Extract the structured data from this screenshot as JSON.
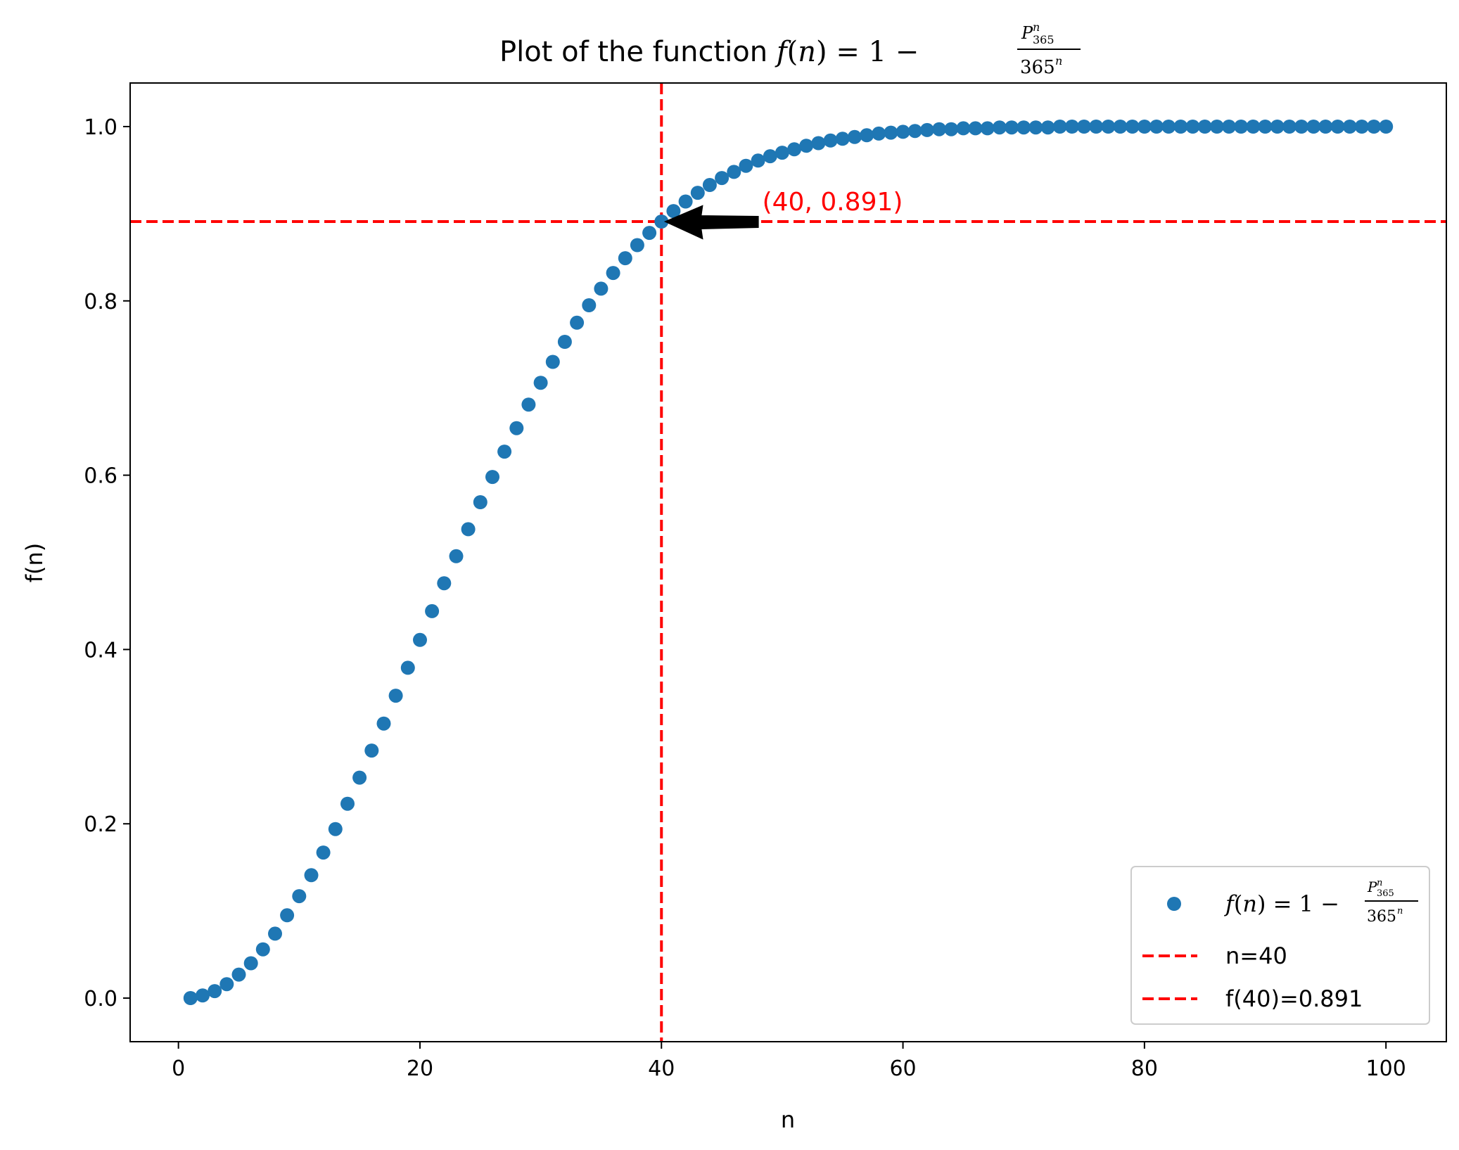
{
  "chart_data": {
    "type": "scatter",
    "title": {
      "prefix": "Plot of the function ",
      "f": "f",
      "open": "(",
      "n": "n",
      "close_eq": ") = 1 − ",
      "num_P": "P",
      "num_sup": "n",
      "num_sub": "365",
      "den_base": "365",
      "den_sup": "n"
    },
    "xlabel": "n",
    "ylabel": "f(n)",
    "xlim": [
      -4,
      105
    ],
    "ylim": [
      -0.05,
      1.05
    ],
    "xticks": [
      0,
      20,
      40,
      60,
      80,
      100
    ],
    "yticks": [
      0.0,
      0.2,
      0.4,
      0.6,
      0.8,
      1.0
    ],
    "xtick_labels": [
      "0",
      "20",
      "40",
      "60",
      "80",
      "100"
    ],
    "ytick_labels": [
      "0.0",
      "0.2",
      "0.4",
      "0.6",
      "0.8",
      "1.0"
    ],
    "grid": false,
    "legend_position": "lower-right",
    "series": [
      {
        "label": {
          "f": "f",
          "open": "(",
          "n": "n",
          "close_eq": ") = 1 − ",
          "num_P": "P",
          "num_sup": "n",
          "num_sub": "365",
          "den_base": "365",
          "den_sup": "n"
        },
        "color": "#1f77b4",
        "x": [
          1,
          2,
          3,
          4,
          5,
          6,
          7,
          8,
          9,
          10,
          11,
          12,
          13,
          14,
          15,
          16,
          17,
          18,
          19,
          20,
          21,
          22,
          23,
          24,
          25,
          26,
          27,
          28,
          29,
          30,
          31,
          32,
          33,
          34,
          35,
          36,
          37,
          38,
          39,
          40,
          41,
          42,
          43,
          44,
          45,
          46,
          47,
          48,
          49,
          50,
          51,
          52,
          53,
          54,
          55,
          56,
          57,
          58,
          59,
          60,
          61,
          62,
          63,
          64,
          65,
          66,
          67,
          68,
          69,
          70,
          71,
          72,
          73,
          74,
          75,
          76,
          77,
          78,
          79,
          80,
          81,
          82,
          83,
          84,
          85,
          86,
          87,
          88,
          89,
          90,
          91,
          92,
          93,
          94,
          95,
          96,
          97,
          98,
          99,
          100
        ],
        "y": [
          0.0,
          0.003,
          0.008,
          0.016,
          0.027,
          0.04,
          0.056,
          0.074,
          0.095,
          0.117,
          0.141,
          0.167,
          0.194,
          0.223,
          0.253,
          0.284,
          0.315,
          0.347,
          0.379,
          0.411,
          0.444,
          0.476,
          0.507,
          0.538,
          0.569,
          0.598,
          0.627,
          0.654,
          0.681,
          0.706,
          0.73,
          0.753,
          0.775,
          0.795,
          0.814,
          0.832,
          0.849,
          0.864,
          0.878,
          0.891,
          0.903,
          0.914,
          0.924,
          0.933,
          0.941,
          0.948,
          0.955,
          0.961,
          0.966,
          0.97,
          0.974,
          0.978,
          0.981,
          0.984,
          0.986,
          0.988,
          0.99,
          0.992,
          0.993,
          0.994,
          0.995,
          0.996,
          0.997,
          0.997,
          0.998,
          0.998,
          0.998,
          0.999,
          0.999,
          0.999,
          0.999,
          0.999,
          1.0,
          1.0,
          1.0,
          1.0,
          1.0,
          1.0,
          1.0,
          1.0,
          1.0,
          1.0,
          1.0,
          1.0,
          1.0,
          1.0,
          1.0,
          1.0,
          1.0,
          1.0,
          1.0,
          1.0,
          1.0,
          1.0,
          1.0,
          1.0,
          1.0,
          1.0,
          1.0,
          1.0
        ]
      }
    ],
    "vline": {
      "x": 40,
      "label": "n=40",
      "color": "#ff0000",
      "style": "dashed"
    },
    "hline": {
      "y": 0.891,
      "label": "f(40)=0.891",
      "color": "#ff0000",
      "style": "dashed"
    },
    "annotation": {
      "text": "(40, 0.891)",
      "xy": [
        40,
        0.891
      ],
      "xytext": [
        48,
        0.891
      ],
      "color": "#ff0000",
      "arrow_color": "#000000"
    }
  }
}
